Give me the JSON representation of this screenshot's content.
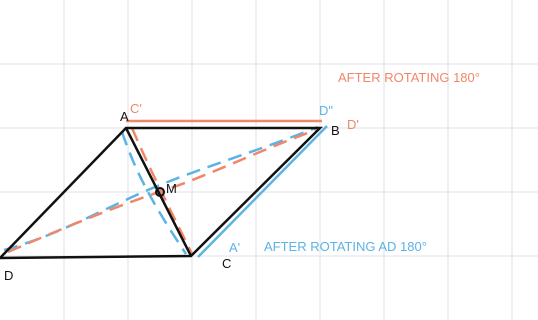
{
  "annotations": {
    "orange": "AFTER ROTATING 180°",
    "blue": "AFTER ROTATING AD 180°"
  },
  "points": {
    "A": "A",
    "B": "B",
    "C": "C",
    "D": "D",
    "M": "M",
    "C_prime": "C'",
    "D_double_prime": "D\"",
    "D_prime": "D'",
    "A_prime": "A'"
  }
}
